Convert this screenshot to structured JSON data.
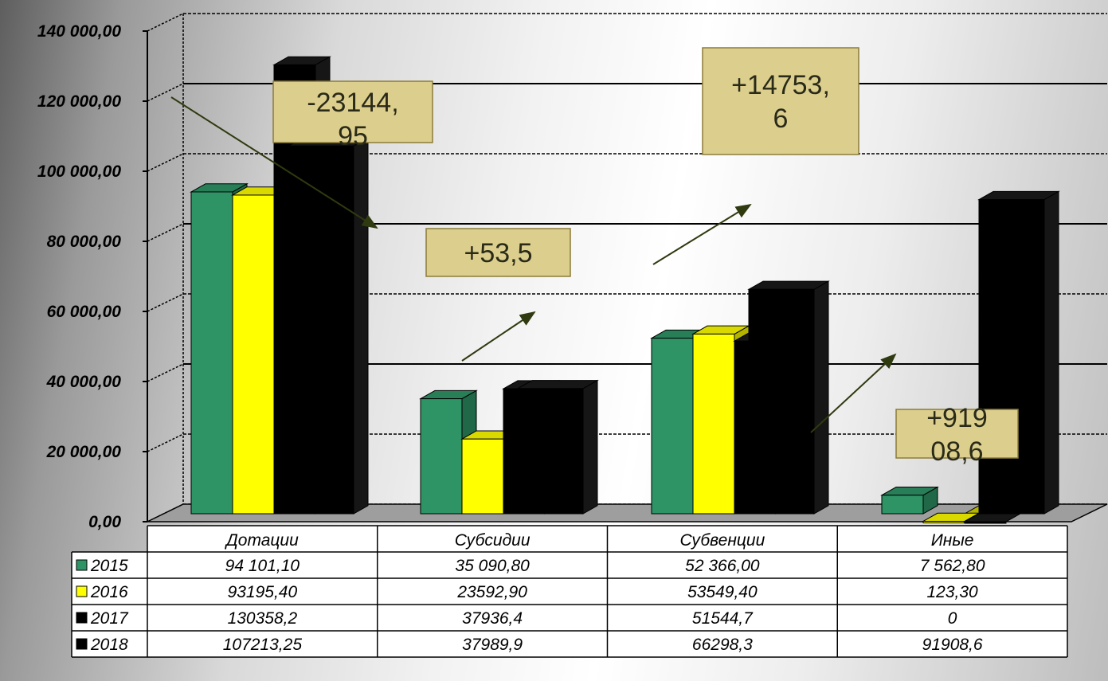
{
  "chart_data": {
    "type": "bar",
    "categories": [
      "Дотации",
      "Субсидии",
      "Субвенции",
      "Иные"
    ],
    "y_tick_labels": [
      "0,00",
      "20 000,00",
      "40 000,00",
      "60 000,00",
      "80 000,00",
      "100 000,00",
      "120 000,00",
      "140 000,00"
    ],
    "ylim": [
      0,
      140000
    ],
    "grid": true,
    "legend": "table-bottom",
    "series": [
      {
        "name": "2015",
        "color": "#2e9466",
        "values": [
          94101.1,
          35090.8,
          52366.0,
          7562.8
        ],
        "labels": [
          "94 101,10",
          "35 090,80",
          "52 366,00",
          "7 562,80"
        ]
      },
      {
        "name": "2016",
        "color": "#ffff00",
        "values": [
          93195.4,
          23592.9,
          53549.4,
          123.3
        ],
        "labels": [
          "93195,40",
          "23592,90",
          "53549,40",
          "123,30"
        ]
      },
      {
        "name": "2017",
        "color": "#000000",
        "values": [
          130358.2,
          37936.4,
          51544.7,
          0
        ],
        "labels": [
          "130358,2",
          "37936,4",
          "51544,7",
          "0"
        ]
      },
      {
        "name": "2018",
        "color": "#000000",
        "values": [
          107213.25,
          37989.9,
          66298.3,
          91908.6
        ],
        "labels": [
          "107213,25",
          "37989,9",
          "66298,3",
          "91908,6"
        ]
      }
    ],
    "annotations": [
      {
        "lines": [
          "-23144,",
          "95"
        ]
      },
      {
        "lines": [
          "+14753,",
          "6"
        ]
      },
      {
        "lines": [
          "+53,5"
        ]
      },
      {
        "lines": [
          "+919",
          "08,6"
        ]
      }
    ]
  }
}
